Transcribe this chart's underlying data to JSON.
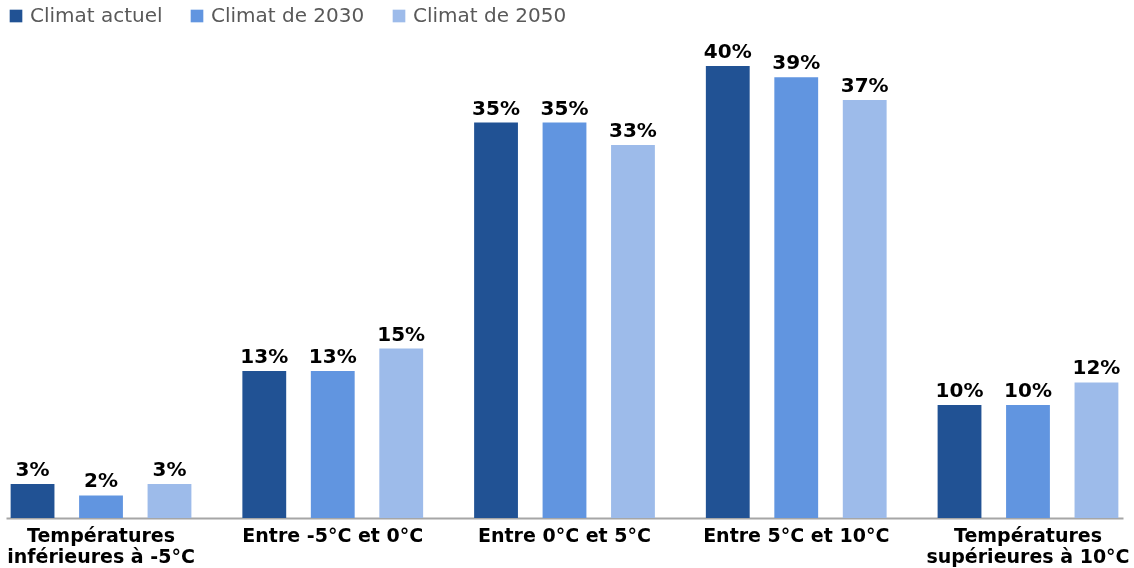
{
  "chart_data": {
    "type": "bar",
    "categories": [
      "Températures inférieures à -5°C",
      "Entre -5°C et 0°C",
      "Entre 0°C et 5°C",
      "Entre 5°C et 10°C",
      "Températures supérieures à 10°C"
    ],
    "series": [
      {
        "name": "Climat actuel",
        "color": "#215294",
        "values": [
          3,
          13,
          35,
          40,
          10
        ],
        "value_labels": [
          "3%",
          "13%",
          "35%",
          "40%",
          "10%"
        ]
      },
      {
        "name": "Climat de 2030",
        "color": "#6195e0",
        "values": [
          2,
          13,
          35,
          39,
          10
        ],
        "value_labels": [
          "2%",
          "13%",
          "35%",
          "39%",
          "10%"
        ]
      },
      {
        "name": "Climat de 2050",
        "color": "#9dbbea",
        "values": [
          3,
          15,
          33,
          37,
          12
        ],
        "value_labels": [
          "3%",
          "15%",
          "33%",
          "37%",
          "12%"
        ]
      }
    ],
    "legend": "top"
  }
}
